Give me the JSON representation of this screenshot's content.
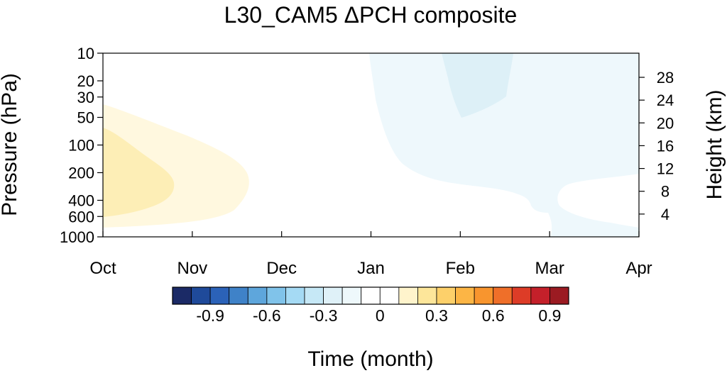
{
  "chart_data": {
    "type": "heatmap",
    "title": "L30_CAM5 ΔPCH composite",
    "xlabel": "Time (month)",
    "ylabel_left": "Pressure (hPa)",
    "ylabel_right": "Height (km)",
    "x_ticks": [
      "Oct",
      "Nov",
      "Dec",
      "Jan",
      "Feb",
      "Mar",
      "Apr"
    ],
    "y_ticks_left": [
      "10",
      "20",
      "30",
      "50",
      "100",
      "200",
      "400",
      "600",
      "1000"
    ],
    "y_ticks_right": [
      "4",
      "8",
      "12",
      "16",
      "20",
      "24",
      "28"
    ],
    "ylim": [
      1000,
      10
    ],
    "y_scale": "log",
    "colorbar": {
      "levels": [
        -1.0,
        -0.9,
        -0.8,
        -0.7,
        -0.6,
        -0.5,
        -0.4,
        -0.3,
        -0.2,
        -0.1,
        0,
        0.1,
        0.2,
        0.3,
        0.4,
        0.5,
        0.6,
        0.7,
        0.8,
        0.9,
        1.0
      ],
      "colors": [
        "#1b2a66",
        "#1f4a9a",
        "#2b62b8",
        "#3f82c8",
        "#5ea6dc",
        "#80c3ea",
        "#a5daf4",
        "#c6e8f6",
        "#dff1f8",
        "#eef8fb",
        "#ffffff",
        "#ffffff",
        "#fff4cc",
        "#fde69a",
        "#fdd06a",
        "#fcb545",
        "#f8952e",
        "#ef6f29",
        "#dd3c27",
        "#c4202a",
        "#9b1b22"
      ],
      "tick_labels": [
        "-0.9",
        "-0.6",
        "-0.3",
        "0",
        "0.3",
        "0.6",
        "0.9"
      ]
    },
    "contour_regions": [
      {
        "value": 0.1,
        "color": "#fff8df",
        "description": "weak positive anomaly, Oct to mid-Nov, 1000-40 hPa"
      },
      {
        "value": 0.2,
        "color": "#fdeeb6",
        "description": "positive anomaly core, Oct to late Oct, 700-70 hPa"
      },
      {
        "value": -0.1,
        "color": "#eef8fc",
        "description": "weak negative anomaly, Jan to Apr, 10 hPa down to surface"
      },
      {
        "value": -0.2,
        "color": "#ddf0f7",
        "description": "negative anomaly core, late Jan to mid-Feb, 10-50 hPa"
      }
    ]
  }
}
